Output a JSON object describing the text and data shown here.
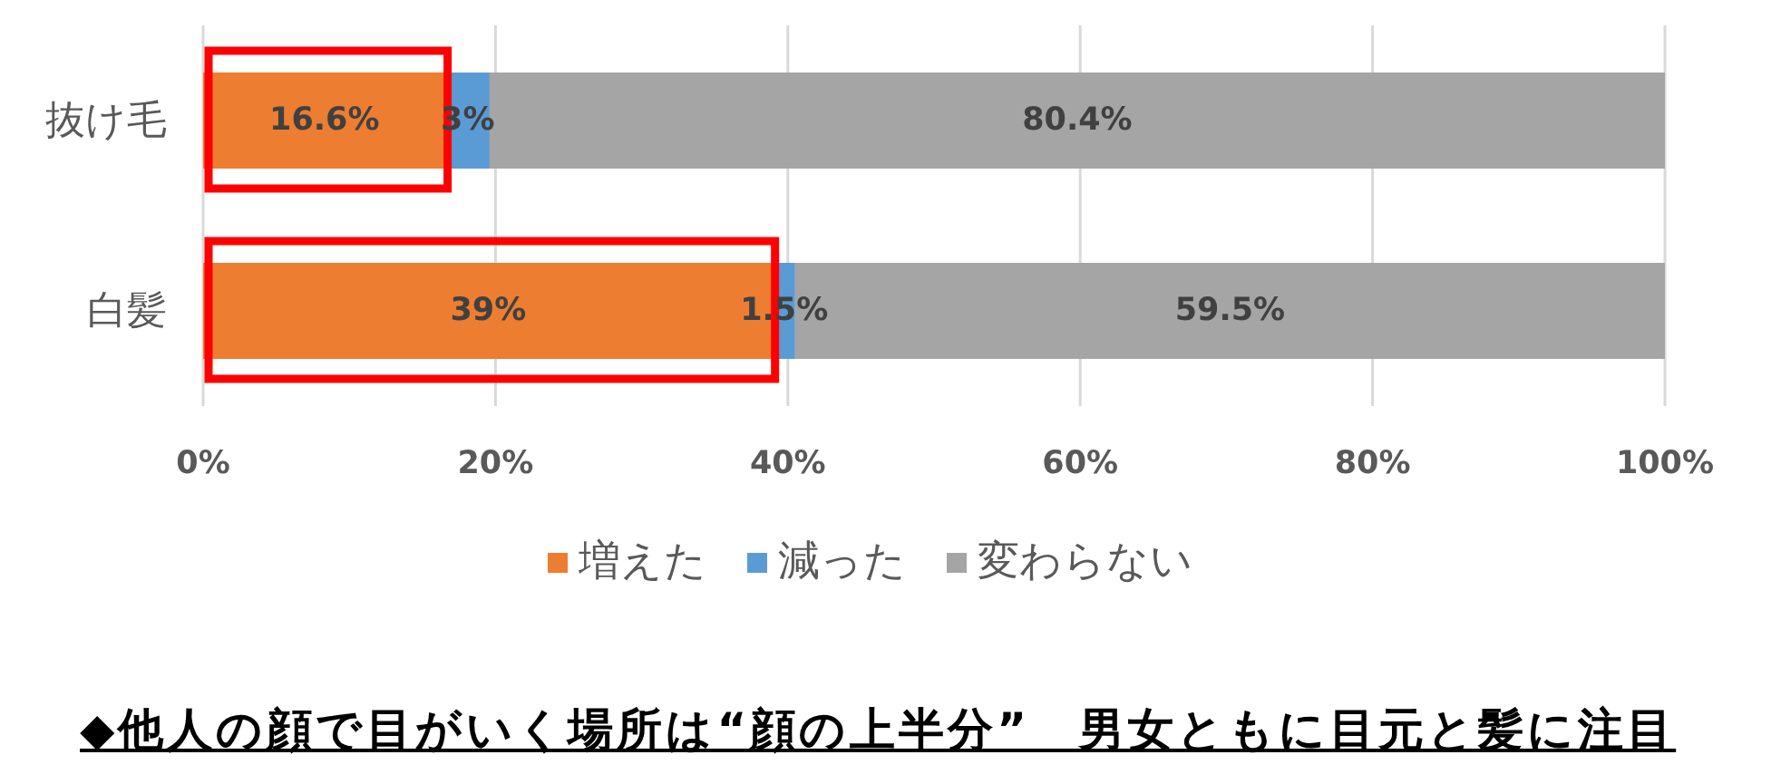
{
  "chart_data": {
    "type": "bar",
    "orientation": "horizontal",
    "stacked": true,
    "categories": [
      "抜け毛",
      "白髪"
    ],
    "series": [
      {
        "name": "増えた",
        "color": "#ed7d31",
        "values": [
          16.6,
          39
        ],
        "value_labels": [
          "16.6%",
          "39%"
        ]
      },
      {
        "name": "減った",
        "color": "#5b9bd5",
        "values": [
          3,
          1.5
        ],
        "value_labels": [
          "3%",
          "1.5%"
        ]
      },
      {
        "name": "変わらない",
        "color": "#a5a5a5",
        "values": [
          80.4,
          59.5
        ],
        "value_labels": [
          "80.4%",
          "59.5%"
        ]
      }
    ],
    "xlim": [
      0,
      100
    ],
    "xticks": [
      {
        "value": 0,
        "label": "0%"
      },
      {
        "value": 20,
        "label": "20%"
      },
      {
        "value": 40,
        "label": "40%"
      },
      {
        "value": 60,
        "label": "60%"
      },
      {
        "value": 80,
        "label": "80%"
      },
      {
        "value": 100,
        "label": "100%"
      }
    ],
    "grid": "x",
    "legend": "bottom",
    "annotations": [
      "◆他人の顔で目がいく場所は“顔の上半分”　男女ともに目元と髪に注目"
    ]
  }
}
